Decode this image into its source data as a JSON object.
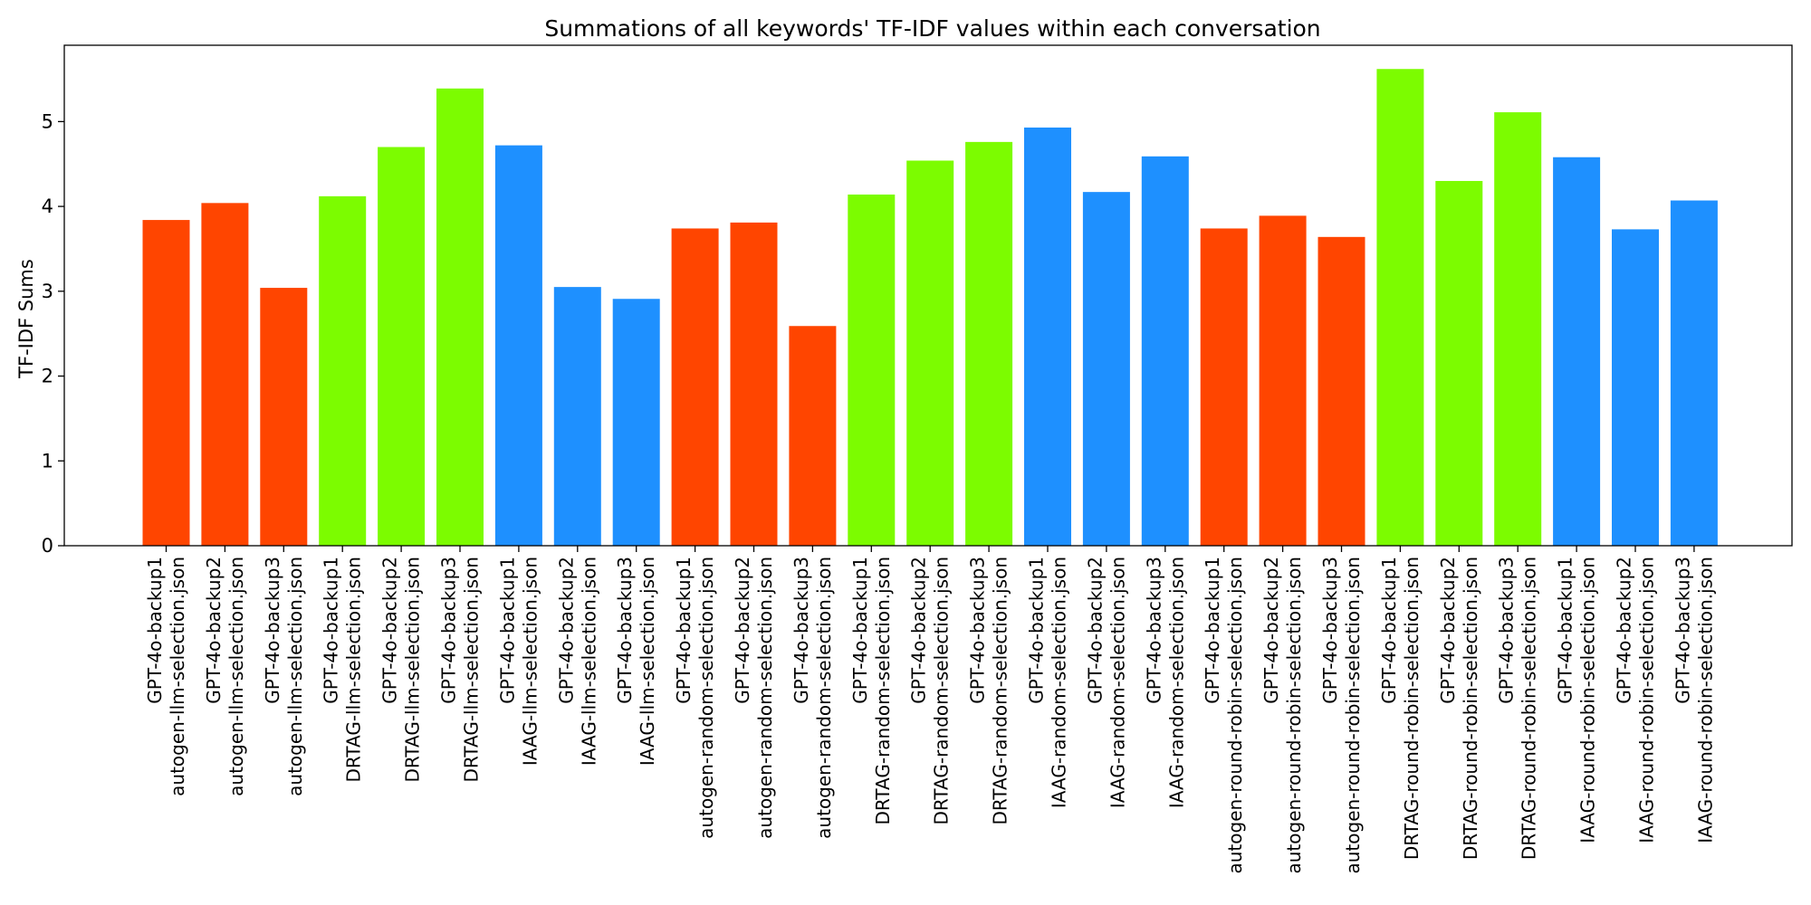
{
  "chart_data": {
    "type": "bar",
    "title": "Summations of all keywords' TF-IDF values within each conversation",
    "xlabel": "",
    "ylabel": "TF-IDF Sums",
    "ylim": [
      0,
      5.9
    ],
    "yticks": [
      0,
      1,
      2,
      3,
      4,
      5
    ],
    "grid": false,
    "legend": "none",
    "categories": [
      [
        "GPT-4o-backup1",
        "autogen-llm-selection.json"
      ],
      [
        "GPT-4o-backup2",
        "autogen-llm-selection.json"
      ],
      [
        "GPT-4o-backup3",
        "autogen-llm-selection.json"
      ],
      [
        "GPT-4o-backup1",
        "DRTAG-llm-selection.json"
      ],
      [
        "GPT-4o-backup2",
        "DRTAG-llm-selection.json"
      ],
      [
        "GPT-4o-backup3",
        "DRTAG-llm-selection.json"
      ],
      [
        "GPT-4o-backup1",
        "IAAG-llm-selection.json"
      ],
      [
        "GPT-4o-backup2",
        "IAAG-llm-selection.json"
      ],
      [
        "GPT-4o-backup3",
        "IAAG-llm-selection.json"
      ],
      [
        "GPT-4o-backup1",
        "autogen-random-selection.json"
      ],
      [
        "GPT-4o-backup2",
        "autogen-random-selection.json"
      ],
      [
        "GPT-4o-backup3",
        "autogen-random-selection.json"
      ],
      [
        "GPT-4o-backup1",
        "DRTAG-random-selection.json"
      ],
      [
        "GPT-4o-backup2",
        "DRTAG-random-selection.json"
      ],
      [
        "GPT-4o-backup3",
        "DRTAG-random-selection.json"
      ],
      [
        "GPT-4o-backup1",
        "IAAG-random-selection.json"
      ],
      [
        "GPT-4o-backup2",
        "IAAG-random-selection.json"
      ],
      [
        "GPT-4o-backup3",
        "IAAG-random-selection.json"
      ],
      [
        "GPT-4o-backup1",
        "autogen-round-robin-selection.json"
      ],
      [
        "GPT-4o-backup2",
        "autogen-round-robin-selection.json"
      ],
      [
        "GPT-4o-backup3",
        "autogen-round-robin-selection.json"
      ],
      [
        "GPT-4o-backup1",
        "DRTAG-round-robin-selection.json"
      ],
      [
        "GPT-4o-backup2",
        "DRTAG-round-robin-selection.json"
      ],
      [
        "GPT-4o-backup3",
        "DRTAG-round-robin-selection.json"
      ],
      [
        "GPT-4o-backup1",
        "IAAG-round-robin-selection.json"
      ],
      [
        "GPT-4o-backup2",
        "IAAG-round-robin-selection.json"
      ],
      [
        "GPT-4o-backup3",
        "IAAG-round-robin-selection.json"
      ]
    ],
    "values": [
      3.84,
      4.04,
      3.04,
      4.12,
      4.7,
      5.39,
      4.72,
      3.05,
      2.91,
      3.74,
      3.81,
      2.59,
      4.14,
      4.54,
      4.76,
      4.93,
      4.17,
      4.59,
      3.74,
      3.89,
      3.64,
      5.62,
      4.3,
      5.11,
      4.58,
      3.73,
      4.07
    ],
    "bar_colors": [
      "#ff4500",
      "#ff4500",
      "#ff4500",
      "#7cfc00",
      "#7cfc00",
      "#7cfc00",
      "#1e90ff",
      "#1e90ff",
      "#1e90ff",
      "#ff4500",
      "#ff4500",
      "#ff4500",
      "#7cfc00",
      "#7cfc00",
      "#7cfc00",
      "#1e90ff",
      "#1e90ff",
      "#1e90ff",
      "#ff4500",
      "#ff4500",
      "#ff4500",
      "#7cfc00",
      "#7cfc00",
      "#7cfc00",
      "#1e90ff",
      "#1e90ff",
      "#1e90ff"
    ]
  }
}
